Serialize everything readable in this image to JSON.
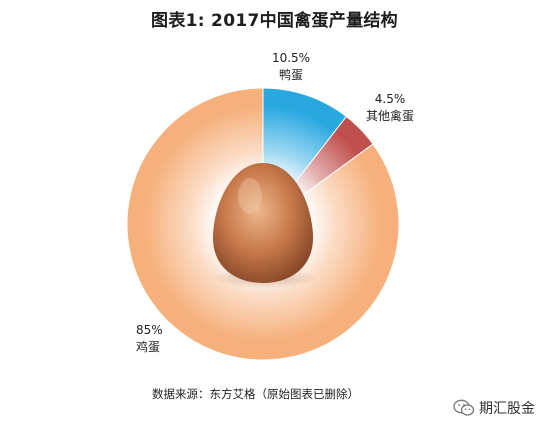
{
  "chart_data": {
    "type": "pie",
    "title": "图表1: 2017中国禽蛋产量结构",
    "categories": [
      "鸭蛋",
      "其他禽蛋",
      "鸡蛋"
    ],
    "values": [
      10.5,
      4.5,
      85
    ],
    "value_labels": [
      "10.5%",
      "4.5%",
      "85%"
    ],
    "colors": [
      "#29a8e0",
      "#c0504d",
      "#f6b07c"
    ],
    "donut": true,
    "legend": "none"
  },
  "source": "数据来源：东方艾格（原始图表已删除）",
  "watermark": {
    "text": "期汇股金",
    "icon": "wechat-icon"
  }
}
